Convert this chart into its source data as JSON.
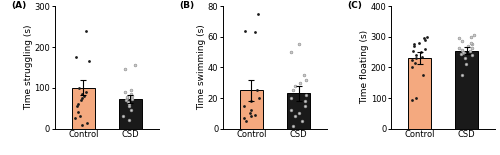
{
  "panels": [
    {
      "label": "(A)",
      "ylabel": "Time struggling (s)",
      "ylim": [
        0,
        300
      ],
      "yticks": [
        0,
        100,
        200,
        300
      ],
      "bar_means": [
        100,
        73
      ],
      "bar_sems": [
        18,
        10
      ],
      "control_points": [
        10,
        15,
        25,
        30,
        40,
        55,
        60,
        70,
        75,
        80,
        85,
        90,
        100,
        165,
        175,
        240
      ],
      "csd_points": [
        20,
        30,
        45,
        55,
        60,
        65,
        70,
        72,
        75,
        78,
        80,
        85,
        90,
        95,
        145,
        155
      ],
      "categories": [
        "Control",
        "CSD"
      ]
    },
    {
      "label": "(B)",
      "ylabel": "Time swimming (s)",
      "ylim": [
        0,
        80
      ],
      "yticks": [
        0,
        20,
        40,
        60,
        80
      ],
      "bar_means": [
        25,
        23
      ],
      "bar_sems": [
        7,
        5
      ],
      "control_points": [
        5,
        7,
        8,
        9,
        10,
        12,
        15,
        18,
        20,
        25,
        63,
        64,
        75
      ],
      "csd_points": [
        2,
        5,
        8,
        10,
        12,
        15,
        18,
        20,
        22,
        25,
        28,
        30,
        32,
        35,
        50,
        55
      ],
      "categories": [
        "Control",
        "CSD"
      ]
    },
    {
      "label": "(C)",
      "ylabel": "Time floating (s)",
      "ylim": [
        0,
        400
      ],
      "yticks": [
        0,
        100,
        200,
        300,
        400
      ],
      "bar_means": [
        232,
        255
      ],
      "bar_sems": [
        20,
        12
      ],
      "control_points": [
        95,
        100,
        175,
        200,
        215,
        225,
        230,
        235,
        240,
        250,
        255,
        260,
        270,
        275,
        280,
        290,
        295,
        300
      ],
      "csd_points": [
        175,
        210,
        230,
        240,
        245,
        248,
        252,
        255,
        258,
        262,
        265,
        270,
        275,
        280,
        285,
        295,
        300,
        305
      ],
      "categories": [
        "Control",
        "CSD"
      ]
    }
  ],
  "control_color": "#F4A97F",
  "csd_color": "#1A1A1A",
  "control_dot_color": "#1A1A1A",
  "csd_dot_facecolor": "#CCCCCC",
  "csd_dot_edgecolor": "#888888",
  "bar_width": 0.5,
  "bar_edge_color": "#000000",
  "error_color": "#000000",
  "dot_size": 4,
  "label_fontsize": 6.5,
  "tick_fontsize": 6,
  "axis_label_fontsize": 6.5
}
